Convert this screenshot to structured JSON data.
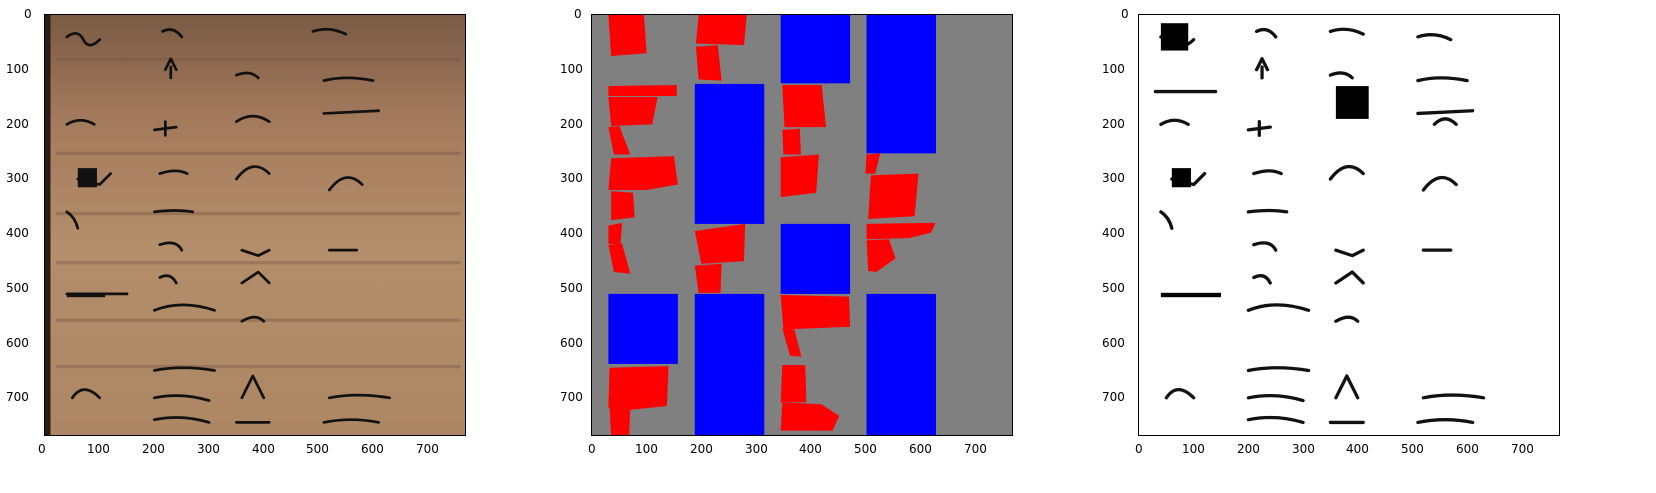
{
  "figure": {
    "panels": [
      {
        "id": "original",
        "kind": "photo",
        "content": "handwritten manuscript page on aged brown paper",
        "x_ticks": [
          "0",
          "100",
          "200",
          "300",
          "400",
          "500",
          "600",
          "700"
        ],
        "y_ticks": [
          "0",
          "100",
          "200",
          "300",
          "400",
          "500",
          "600",
          "700"
        ],
        "handwriting": [
          "dw",
          "ch",
          "dio",
          "y",
          "pour",
          "il",
          "les ne",
          "les tell",
          "ail",
          "abr",
          "rable",
          "dw",
          "et",
          "dw",
          "ne",
          "l'",
          "ces",
          "wap",
          "cette me",
          "M",
          "cty",
          "w",
          "vw",
          "M",
          "lhf",
          "wi",
          "hvgets",
          "wn",
          "nefort",
          "A",
          "marie",
          "elle ou",
          "dos",
          "vaites"
        ]
      },
      {
        "id": "mask",
        "kind": "segmentation",
        "content": "red and blue polygon regions over grey background",
        "x_ticks": [
          "0",
          "100",
          "200",
          "300",
          "400",
          "500",
          "600",
          "700"
        ],
        "y_ticks": [
          "0",
          "100",
          "200",
          "300",
          "400",
          "500",
          "600",
          "700"
        ],
        "colors": {
          "background": "#808080",
          "region_a": "#ff0000",
          "region_b": "#0000ff"
        }
      },
      {
        "id": "binarized",
        "kind": "binarized",
        "content": "black-and-white binarized handwriting",
        "x_ticks": [
          "0",
          "100",
          "200",
          "300",
          "400",
          "500",
          "600",
          "700"
        ],
        "y_ticks": [
          "0",
          "100",
          "200",
          "300",
          "400",
          "500",
          "600",
          "700"
        ],
        "handwriting": [
          "dw",
          "ch",
          "dio",
          "y",
          "pour",
          "il",
          "les ne",
          "les tell",
          "ail",
          "abr",
          "rable",
          "dw",
          "et",
          "dw",
          "ne",
          "l'",
          "ces",
          "wap",
          "cette me",
          "M",
          "cty",
          "w",
          "vw",
          "M",
          "lhf",
          "wi",
          "hvgets",
          "wn",
          "nefort",
          "A",
          "marie",
          "elle ou",
          "dos",
          "vaites"
        ]
      }
    ]
  }
}
